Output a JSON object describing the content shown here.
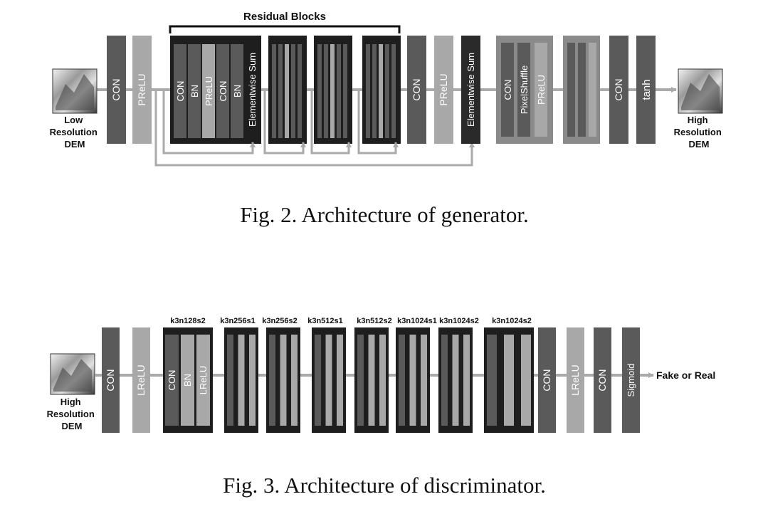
{
  "generator": {
    "residual_title": "Residual Blocks",
    "input_label": [
      "Low",
      "Resolution",
      "DEM"
    ],
    "output_label": [
      "High",
      "Resolution",
      "DEM"
    ],
    "con1": "CON",
    "prelu1": "PReLU",
    "res_layers": [
      "CON",
      "BN",
      "PReLU",
      "CON",
      "BN",
      "Elementwise Sum"
    ],
    "con2": "CON",
    "prelu2": "PReLU",
    "sum2": "Elementwise Sum",
    "upsample_layers": [
      "CON",
      "PixelShuffle",
      "PReLU"
    ],
    "con3": "CON",
    "tanh": "tanh",
    "caption": "Fig. 2.  Architecture of generator."
  },
  "discriminator": {
    "input_label": [
      "High",
      "Resolution",
      "DEM"
    ],
    "output_label": "Fake or Real",
    "con1": "CON",
    "lrelu1": "LReLU",
    "block_layers": [
      "CON",
      "BN",
      "LReLU"
    ],
    "block_params": [
      "k3n128s2",
      "k3n256s1",
      "k3n256s2",
      "k3n512s1",
      "k3n512s2",
      "k3n1024s1",
      "k3n1024s2",
      "k3n1024s2"
    ],
    "con2": "CON",
    "lrelu2": "LReLU",
    "con3": "CON",
    "sigmoid": "Sigmoid",
    "caption": "Fig. 3.  Architecture of discriminator."
  },
  "colors": {
    "dark_layer": "#5a5a5a",
    "light_layer": "#a8a8a8",
    "block_bg": "#1e1e1e",
    "arrow": "#aaaaaa"
  }
}
